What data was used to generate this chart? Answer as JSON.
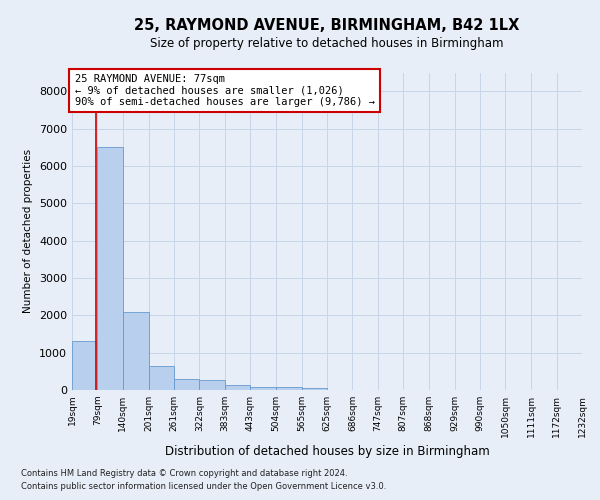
{
  "title_line1": "25, RAYMOND AVENUE, BIRMINGHAM, B42 1LX",
  "title_line2": "Size of property relative to detached houses in Birmingham",
  "xlabel": "Distribution of detached houses by size in Birmingham",
  "ylabel": "Number of detached properties",
  "footer_line1": "Contains HM Land Registry data © Crown copyright and database right 2024.",
  "footer_line2": "Contains public sector information licensed under the Open Government Licence v3.0.",
  "annotation_line1": "25 RAYMOND AVENUE: 77sqm",
  "annotation_line2": "← 9% of detached houses are smaller (1,026)",
  "annotation_line3": "90% of semi-detached houses are larger (9,786) →",
  "bar_left_edges": [
    19,
    79,
    140,
    201,
    261,
    322,
    383,
    443,
    504,
    565,
    625,
    686,
    747,
    807,
    868,
    929,
    990,
    1050,
    1111,
    1172
  ],
  "bar_widths": [
    60,
    61,
    61,
    60,
    61,
    61,
    60,
    61,
    61,
    60,
    61,
    61,
    60,
    61,
    61,
    61,
    60,
    61,
    61,
    60
  ],
  "bar_heights": [
    1300,
    6500,
    2100,
    650,
    300,
    280,
    130,
    80,
    80,
    60,
    0,
    0,
    0,
    0,
    0,
    0,
    0,
    0,
    0,
    0
  ],
  "bar_color": "#b8d0ee",
  "bar_edge_color": "#6699cc",
  "vline_x": 77,
  "vline_color": "#cc0000",
  "ylim": [
    0,
    8500
  ],
  "xlim": [
    19,
    1232
  ],
  "yticks": [
    0,
    1000,
    2000,
    3000,
    4000,
    5000,
    6000,
    7000,
    8000
  ],
  "xtick_labels": [
    "19sqm",
    "79sqm",
    "140sqm",
    "201sqm",
    "261sqm",
    "322sqm",
    "383sqm",
    "443sqm",
    "504sqm",
    "565sqm",
    "625sqm",
    "686sqm",
    "747sqm",
    "807sqm",
    "868sqm",
    "929sqm",
    "990sqm",
    "1050sqm",
    "1111sqm",
    "1172sqm",
    "1232sqm"
  ],
  "xtick_positions": [
    19,
    79,
    140,
    201,
    261,
    322,
    383,
    443,
    504,
    565,
    625,
    686,
    747,
    807,
    868,
    929,
    990,
    1050,
    1111,
    1172,
    1232
  ],
  "grid_color": "#c8d4e8",
  "background_color": "#e8eef8",
  "title1_fontsize": 10.5,
  "title2_fontsize": 8.5,
  "xlabel_fontsize": 8.5,
  "ylabel_fontsize": 7.5,
  "ytick_fontsize": 8,
  "xtick_fontsize": 6.5,
  "annotation_fontsize": 7.5,
  "footer_fontsize": 6.0
}
